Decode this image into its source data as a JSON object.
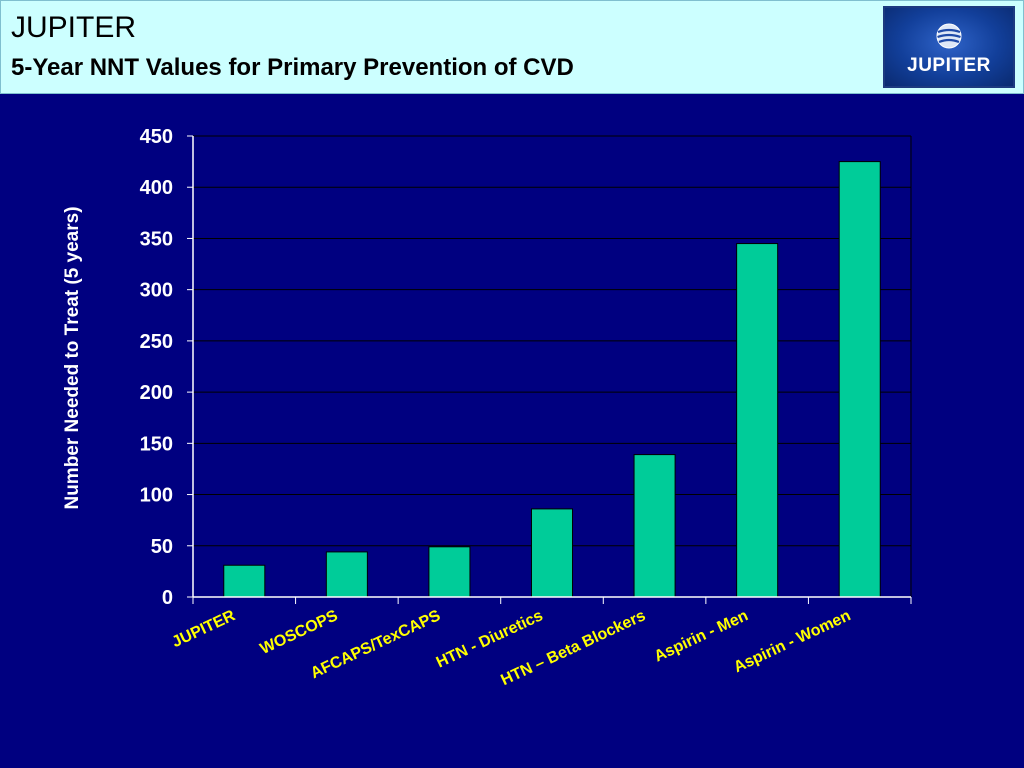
{
  "slide": {
    "title": "JUPITER",
    "subtitle": "5-Year NNT Values for Primary Prevention of CVD",
    "logo_text": "JUPITER",
    "logo_icon": "globe-icon"
  },
  "colors": {
    "background": "#000080",
    "header_background": "#ccffff",
    "bar": "#00cc99",
    "axis_text": "#ffffff",
    "category_text": "#ffff00"
  },
  "chart_data": {
    "type": "bar",
    "title": "",
    "xlabel": "",
    "ylabel": "Number Needed to Treat (5 years)",
    "categories": [
      "JUPITER",
      "WOSCOPS",
      "AFCAPS/TexCAPS",
      "HTN - Diuretics",
      "HTN – Beta Blockers",
      "Aspirin - Men",
      "Aspirin - Women"
    ],
    "values": [
      31,
      44,
      49,
      86,
      139,
      345,
      425
    ],
    "ylim": [
      0,
      450
    ],
    "yticks": [
      0,
      50,
      100,
      150,
      200,
      250,
      300,
      350,
      400,
      450
    ],
    "grid": true,
    "legend": "none"
  }
}
